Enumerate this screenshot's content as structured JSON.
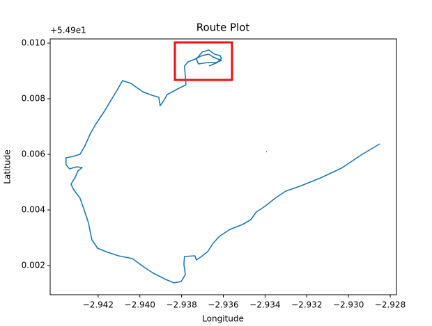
{
  "chart_data": {
    "type": "line",
    "title": "Route Plot",
    "x_label": "Longitude",
    "y_label": "Latitude",
    "y_offset_label": "+5.49e1",
    "color": "#1f77b4",
    "grid": false,
    "xlim": [
      -2.9443,
      -2.9277
    ],
    "ylim": [
      0.00095,
      0.01015
    ],
    "xticks": [
      {
        "value": -2.942,
        "label": "−2.942"
      },
      {
        "value": -2.94,
        "label": "−2.940"
      },
      {
        "value": -2.938,
        "label": "−2.938"
      },
      {
        "value": -2.936,
        "label": "−2.936"
      },
      {
        "value": -2.934,
        "label": "−2.934"
      },
      {
        "value": -2.932,
        "label": "−2.932"
      },
      {
        "value": -2.93,
        "label": "−2.930"
      },
      {
        "value": -2.928,
        "label": "−2.928"
      }
    ],
    "yticks": [
      0.002,
      0.004,
      0.006,
      0.008,
      {
        "value": 0.01,
        "label": "0.010"
      }
    ],
    "x": [
      -2.9285,
      -2.92934,
      -2.93034,
      -2.93134,
      -2.93234,
      -2.93301,
      -2.93351,
      -2.93401,
      -2.93442,
      -2.93468,
      -2.93508,
      -2.93568,
      -2.93619,
      -2.93649,
      -2.93675,
      -2.93709,
      -2.93729,
      -2.93736,
      -2.93786,
      -2.93789,
      -2.93782,
      -2.93802,
      -2.93836,
      -2.93876,
      -2.93936,
      -2.93986,
      -2.94036,
      -2.94103,
      -2.94163,
      -2.94203,
      -2.9423,
      -2.94247,
      -2.94267,
      -2.94287,
      -2.94317,
      -2.9433,
      -2.9431,
      -2.94297,
      -2.94277,
      -2.94304,
      -2.94337,
      -2.94354,
      -2.94354,
      -2.9432,
      -2.94287,
      -2.94264,
      -2.94237,
      -2.9421,
      -2.9417,
      -2.9413,
      -2.9411,
      -2.94083,
      -2.94043,
      -2.93986,
      -2.93943,
      -2.93909,
      -2.93903,
      -2.93886,
      -2.93869,
      -2.93819,
      -2.93779,
      -2.93786,
      -2.93769,
      -2.93736,
      -2.93702,
      -2.93669,
      -2.93649,
      -2.93609,
      -2.93635,
      -2.93675,
      -2.93719,
      -2.93729,
      -2.93702,
      -2.93669,
      -2.93642,
      -2.93615,
      -2.93609,
      -2.93629,
      -2.93669
    ],
    "values": [
      0.006375,
      0.006,
      0.0055,
      0.00515,
      0.00485,
      0.004675,
      0.004425,
      0.004125,
      0.003925,
      0.00365,
      0.003475,
      0.0033,
      0.00305,
      0.0028,
      0.0025,
      0.0023,
      0.0022,
      0.00235,
      0.002325,
      0.00205,
      0.001675,
      0.001425,
      0.001375,
      0.0015,
      0.001725,
      0.001975,
      0.00225,
      0.00235,
      0.0025,
      0.002625,
      0.002925,
      0.00355,
      0.004,
      0.004425,
      0.004725,
      0.004925,
      0.005175,
      0.0054,
      0.005525,
      0.00555,
      0.005475,
      0.005625,
      0.005875,
      0.005925,
      0.006,
      0.0063,
      0.00675,
      0.0071,
      0.00755,
      0.00805,
      0.0083,
      0.00865,
      0.00855,
      0.00825,
      0.008125,
      0.00805,
      0.00775,
      0.007925,
      0.00815,
      0.00835,
      0.0085,
      0.009175,
      0.009325,
      0.009425,
      0.00955,
      0.0096,
      0.0095,
      0.009375,
      0.0093,
      0.0093,
      0.00925,
      0.009425,
      0.009675,
      0.00975,
      0.0096,
      0.00955,
      0.00945,
      0.0093,
      0.009175
    ]
  }
}
